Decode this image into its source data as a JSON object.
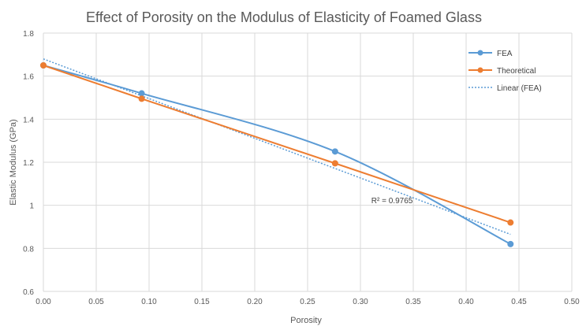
{
  "chart_data": {
    "type": "line",
    "title": "Effect of Porosity on the Modulus of Elasticity of Foamed Glass",
    "xlabel": "Porosity",
    "ylabel": "Elastic Modulus (GPa)",
    "xlim": [
      0,
      0.5
    ],
    "ylim": [
      0.6,
      1.8
    ],
    "x_ticks": [
      "0.00",
      "0.05",
      "0.10",
      "0.15",
      "0.20",
      "0.25",
      "0.30",
      "0.35",
      "0.40",
      "0.45",
      "0.50"
    ],
    "y_ticks": [
      "0.6",
      "0.8",
      "1",
      "1.2",
      "1.4",
      "1.6",
      "1.8"
    ],
    "grid": true,
    "legend_position": "right",
    "series": [
      {
        "name": "FEA",
        "color": "#5B9BD5",
        "smooth": true,
        "markers": true,
        "x": [
          0.0,
          0.093,
          0.276,
          0.442
        ],
        "y": [
          1.65,
          1.52,
          1.25,
          0.82
        ]
      },
      {
        "name": "Theoretical",
        "color": "#ED7D31",
        "smooth": false,
        "markers": true,
        "x": [
          0.0,
          0.093,
          0.276,
          0.442
        ],
        "y": [
          1.65,
          1.495,
          1.195,
          0.92
        ]
      }
    ],
    "trendline": {
      "name": "Linear (FEA)",
      "color": "#5B9BD5",
      "style": "dotted",
      "x": [
        0.0,
        0.442
      ],
      "y": [
        1.68,
        0.865
      ]
    },
    "annotations": [
      {
        "text": "R² = 0.9765",
        "x": 0.27,
        "y": 1.02
      }
    ]
  }
}
